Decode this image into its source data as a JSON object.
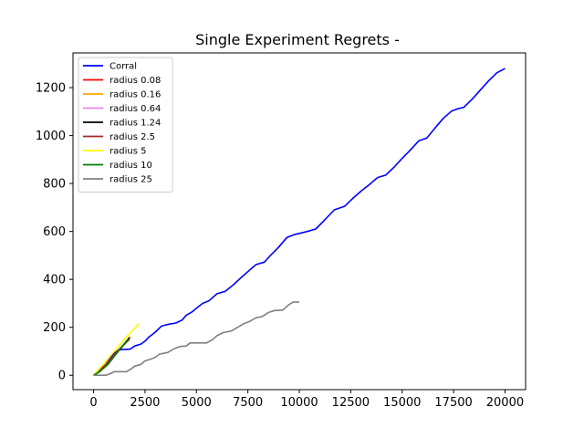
{
  "chart_data": {
    "type": "line",
    "title": "Single Experiment Regrets -",
    "xlabel": "",
    "ylabel": "",
    "xlim": [
      -1000,
      21000
    ],
    "ylim": [
      -60,
      1345
    ],
    "x_ticks": [
      0,
      2500,
      5000,
      7500,
      10000,
      12500,
      15000,
      17500,
      20000
    ],
    "y_ticks": [
      0,
      200,
      400,
      600,
      800,
      1000,
      1200
    ],
    "grid": false,
    "legend_position": "top-left",
    "series": [
      {
        "name": "Corral",
        "color": "#0000ff",
        "points": [
          [
            0,
            0
          ],
          [
            200,
            10
          ],
          [
            400,
            28
          ],
          [
            600,
            48
          ],
          [
            800,
            70
          ],
          [
            1000,
            92
          ],
          [
            1200,
            105
          ],
          [
            1400,
            108
          ],
          [
            1600,
            108
          ],
          [
            1800,
            110
          ],
          [
            2000,
            122
          ],
          [
            2300,
            130
          ],
          [
            2500,
            142
          ],
          [
            2700,
            160
          ],
          [
            3000,
            180
          ],
          [
            3300,
            205
          ],
          [
            3600,
            212
          ],
          [
            4000,
            218
          ],
          [
            4300,
            230
          ],
          [
            4500,
            250
          ],
          [
            4800,
            265
          ],
          [
            5000,
            280
          ],
          [
            5300,
            300
          ],
          [
            5600,
            310
          ],
          [
            6000,
            340
          ],
          [
            6400,
            350
          ],
          [
            6800,
            378
          ],
          [
            7200,
            410
          ],
          [
            7600,
            440
          ],
          [
            7900,
            462
          ],
          [
            8300,
            472
          ],
          [
            8600,
            500
          ],
          [
            9000,
            535
          ],
          [
            9400,
            575
          ],
          [
            9800,
            588
          ],
          [
            10300,
            598
          ],
          [
            10800,
            610
          ],
          [
            11200,
            645
          ],
          [
            11700,
            690
          ],
          [
            12200,
            705
          ],
          [
            12600,
            738
          ],
          [
            13000,
            768
          ],
          [
            13400,
            795
          ],
          [
            13800,
            825
          ],
          [
            14200,
            835
          ],
          [
            14600,
            868
          ],
          [
            15000,
            905
          ],
          [
            15400,
            940
          ],
          [
            15800,
            978
          ],
          [
            16200,
            990
          ],
          [
            16600,
            1032
          ],
          [
            17000,
            1072
          ],
          [
            17400,
            1102
          ],
          [
            17700,
            1112
          ],
          [
            18000,
            1118
          ],
          [
            18400,
            1152
          ],
          [
            18800,
            1190
          ],
          [
            19200,
            1228
          ],
          [
            19600,
            1262
          ],
          [
            20000,
            1280
          ]
        ]
      },
      {
        "name": "radius 0.08",
        "color": "#ff0000",
        "points": [
          [
            0,
            0
          ],
          [
            600,
            40
          ],
          [
            1200,
            100
          ],
          [
            1750,
            155
          ]
        ]
      },
      {
        "name": "radius 0.16",
        "color": "#ffa500",
        "points": [
          [
            0,
            0
          ],
          [
            700,
            55
          ],
          [
            1300,
            112
          ],
          [
            1800,
            160
          ]
        ]
      },
      {
        "name": "radius 0.64",
        "color": "#ee82ee",
        "points": [
          [
            0,
            0
          ],
          [
            650,
            50
          ],
          [
            1250,
            108
          ],
          [
            1750,
            155
          ]
        ]
      },
      {
        "name": "radius 1.24",
        "color": "#000000",
        "points": [
          [
            0,
            0
          ],
          [
            300,
            15
          ],
          [
            700,
            50
          ],
          [
            1200,
            100
          ],
          [
            1750,
            158
          ]
        ]
      },
      {
        "name": "radius 2.5",
        "color": "#a52a2a",
        "points": [
          [
            0,
            0
          ],
          [
            600,
            45
          ],
          [
            1200,
            105
          ],
          [
            1750,
            150
          ]
        ]
      },
      {
        "name": "radius 5",
        "color": "#ffff00",
        "points": [
          [
            0,
            0
          ],
          [
            500,
            48
          ],
          [
            1000,
            100
          ],
          [
            1600,
            160
          ],
          [
            2200,
            215
          ]
        ]
      },
      {
        "name": "radius 10",
        "color": "#008000",
        "points": [
          [
            0,
            0
          ],
          [
            300,
            15
          ],
          [
            700,
            45
          ],
          [
            1200,
            100
          ],
          [
            1700,
            150
          ]
        ]
      },
      {
        "name": "radius 25",
        "color": "#808080",
        "points": [
          [
            0,
            0
          ],
          [
            600,
            0
          ],
          [
            900,
            10
          ],
          [
            1000,
            15
          ],
          [
            1600,
            15
          ],
          [
            1800,
            25
          ],
          [
            2000,
            38
          ],
          [
            2300,
            45
          ],
          [
            2500,
            60
          ],
          [
            2800,
            68
          ],
          [
            3000,
            75
          ],
          [
            3200,
            88
          ],
          [
            3600,
            95
          ],
          [
            3900,
            110
          ],
          [
            4200,
            120
          ],
          [
            4500,
            122
          ],
          [
            4700,
            135
          ],
          [
            5500,
            135
          ],
          [
            5800,
            150
          ],
          [
            6000,
            165
          ],
          [
            6300,
            178
          ],
          [
            6700,
            185
          ],
          [
            7000,
            200
          ],
          [
            7300,
            215
          ],
          [
            7600,
            225
          ],
          [
            7900,
            240
          ],
          [
            8200,
            245
          ],
          [
            8500,
            262
          ],
          [
            8800,
            270
          ],
          [
            9200,
            272
          ],
          [
            9500,
            295
          ],
          [
            9700,
            305
          ],
          [
            10000,
            305
          ]
        ]
      }
    ]
  }
}
